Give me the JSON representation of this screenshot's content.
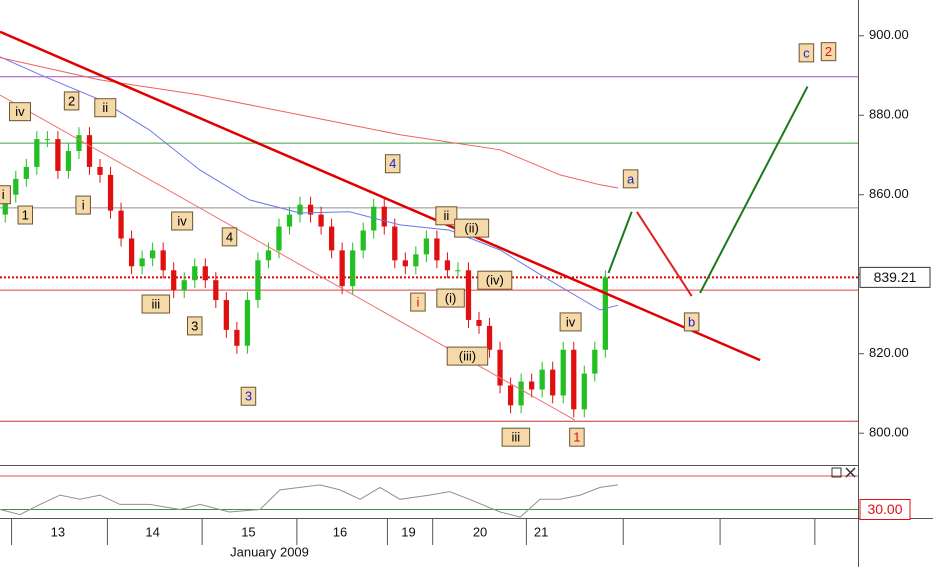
{
  "chart_data": {
    "type": "candlestick",
    "xlim": [
      -0.5,
      81
    ],
    "ylim": [
      792,
      909
    ],
    "yticks": [
      {
        "value": 800,
        "label": "800.00"
      },
      {
        "value": 820,
        "label": "820.00"
      },
      {
        "value": 840,
        "label": "840.00"
      },
      {
        "value": 860,
        "label": "860.00"
      },
      {
        "value": 880,
        "label": "880.00"
      },
      {
        "value": 900,
        "label": "900.00"
      }
    ],
    "xticks": [
      0.6,
      9.7,
      18.7,
      27.7,
      36.3,
      40.6,
      49.5,
      58.7,
      67.9,
      76.9
    ],
    "day_labels": [
      {
        "value": 5,
        "label": "13"
      },
      {
        "value": 14,
        "label": "14"
      },
      {
        "value": 23.1,
        "label": "15"
      },
      {
        "value": 31.8,
        "label": "16"
      },
      {
        "value": 38.3,
        "label": "19"
      },
      {
        "value": 45.1,
        "label": "20"
      },
      {
        "value": 50.9,
        "label": "21"
      }
    ],
    "month_label": {
      "value": 25.1,
      "label": "January 2009"
    },
    "candles": {
      "up_color": "#22c022",
      "down_color": "#e01010",
      "open": [
        855,
        860,
        864,
        867,
        874,
        874,
        866,
        871,
        875,
        867,
        865,
        856,
        849,
        842,
        844,
        846,
        841,
        836,
        838.5,
        842,
        838.5,
        833.5,
        826,
        822,
        833.5,
        843.5,
        846,
        852,
        855,
        857.5,
        855,
        852,
        846,
        837,
        846,
        851,
        857,
        852,
        843.5,
        842,
        845,
        849,
        843.5,
        841,
        841,
        828.5,
        827,
        821,
        812,
        807,
        813,
        811,
        816,
        809.5,
        821,
        806,
        815,
        821
      ],
      "high": [
        862,
        866,
        869,
        876,
        876,
        876,
        873,
        877,
        877,
        869,
        867,
        858,
        851,
        846,
        848,
        848,
        843,
        840.5,
        844,
        844,
        840.5,
        835.5,
        828,
        835.5,
        845.5,
        848,
        854,
        857,
        859.5,
        859.5,
        857,
        854,
        848,
        848,
        853,
        859,
        859,
        854,
        845.5,
        847,
        851,
        851,
        845.5,
        843,
        843,
        830.5,
        829,
        823,
        814,
        815,
        815,
        818,
        818,
        823,
        823,
        817,
        823,
        841
      ],
      "low": [
        853,
        858,
        862,
        865,
        872,
        864,
        864,
        869,
        865,
        863,
        854,
        847,
        840,
        840,
        842,
        839,
        834,
        834,
        836.5,
        836.5,
        831.5,
        824,
        820,
        820,
        831.5,
        841.5,
        844,
        850,
        853,
        853,
        850,
        844,
        835,
        835,
        844,
        849,
        850,
        841.5,
        840,
        840,
        843,
        841.5,
        839,
        839,
        826.5,
        825,
        819,
        810,
        805,
        805,
        809,
        809,
        807.5,
        807.5,
        804,
        804,
        813,
        819
      ],
      "close": [
        860,
        864,
        867,
        874,
        874,
        866,
        871,
        875,
        867,
        865,
        856,
        849,
        842,
        844,
        846,
        841,
        836,
        838.5,
        842,
        838.5,
        833.5,
        826,
        822,
        833.5,
        843.5,
        846,
        852,
        855,
        857.5,
        855,
        852,
        846,
        837,
        846,
        851,
        857,
        852,
        843.5,
        842,
        845,
        849,
        843.5,
        841,
        841,
        828.5,
        827,
        821,
        812,
        807,
        813,
        811,
        816,
        809.5,
        821,
        806,
        815,
        821,
        839.2
      ]
    },
    "last_price": 839.21,
    "levels": [
      {
        "value": 889.7,
        "color": "#a050c0"
      },
      {
        "value": 873,
        "color": "#40a040"
      },
      {
        "value": 856.7,
        "color": "#909090"
      },
      {
        "value": 839.21,
        "color": "#e00000",
        "dotted": true
      },
      {
        "value": 836,
        "color": "#e04040"
      },
      {
        "value": 803,
        "color": "#c03030"
      }
    ],
    "series": [
      {
        "x": [
          -0.5,
          3.3,
          9,
          13.7,
          18.5,
          23.2,
          28,
          32.7,
          37.5,
          42.2,
          47,
          51.7,
          56.5,
          58.2
        ],
        "values": [
          894.7,
          890.2,
          883.9,
          876.3,
          866.2,
          858.7,
          855.4,
          855.7,
          852.4,
          851.1,
          846.1,
          838.5,
          831,
          832.2
        ],
        "color": "#6a78e8",
        "width": 1
      },
      {
        "x": [
          -0.5,
          9,
          18.5,
          28,
          37.5,
          47,
          52.7,
          56.5,
          58.2
        ],
        "values": [
          894.5,
          888.9,
          885.1,
          880.1,
          875.1,
          871.3,
          865,
          862.5,
          861.7
        ],
        "color": "#f06060",
        "width": 1
      },
      {
        "x": [
          -0.5,
          71.7
        ],
        "values": [
          901,
          818.4
        ],
        "color": "#e00000",
        "width": 2.5
      },
      {
        "x": [
          -0.5,
          54.1
        ],
        "values": [
          885.1,
          803.3
        ],
        "color": "#f07070",
        "width": 1
      },
      {
        "x": [
          57.3,
          59.5
        ],
        "values": [
          840.3,
          855.7
        ],
        "color": "#1a7a1a",
        "width": 2
      },
      {
        "x": [
          60,
          65.2
        ],
        "values": [
          855.7,
          834.5
        ],
        "color": "#e02020",
        "width": 2
      },
      {
        "x": [
          66,
          76.2
        ],
        "values": [
          835.3,
          887.2
        ],
        "color": "#1a7a1a",
        "width": 2
      }
    ],
    "annotations": [
      {
        "text": "2",
        "x": 6.3,
        "y": 883.6,
        "color": "#000000"
      },
      {
        "text": "ii",
        "x": 9.5,
        "y": 881.9,
        "color": "#000000"
      },
      {
        "text": "iv",
        "x": 1.4,
        "y": 880.9,
        "color": "#000000"
      },
      {
        "text": "i",
        "x": -0.2,
        "y": 860,
        "color": "#000000"
      },
      {
        "text": "1",
        "x": 1.9,
        "y": 854.9,
        "color": "#000000"
      },
      {
        "text": "i",
        "x": 7.4,
        "y": 857.4,
        "color": "#000000"
      },
      {
        "text": "iv",
        "x": 16.8,
        "y": 853.4,
        "color": "#000000"
      },
      {
        "text": "4",
        "x": 21.3,
        "y": 849.4,
        "color": "#000000"
      },
      {
        "text": "iii",
        "x": 14.3,
        "y": 832.5,
        "color": "#000000"
      },
      {
        "text": "3",
        "x": 18,
        "y": 827,
        "color": "#000000"
      },
      {
        "text": "3",
        "x": 23.1,
        "y": 809.3,
        "color": "#2020d0"
      },
      {
        "text": "4",
        "x": 36.8,
        "y": 867.8,
        "color": "#2020d0"
      },
      {
        "text": "ii",
        "x": 41.9,
        "y": 854.7,
        "color": "#000000"
      },
      {
        "text": "(ii)",
        "x": 44.3,
        "y": 851.6,
        "color": "#000000"
      },
      {
        "text": "i",
        "x": 39.2,
        "y": 833,
        "color": "#e01010"
      },
      {
        "text": "(i)",
        "x": 42.3,
        "y": 834,
        "color": "#000000"
      },
      {
        "text": "(iv)",
        "x": 46.5,
        "y": 838.5,
        "color": "#000000"
      },
      {
        "text": "(iii)",
        "x": 43.9,
        "y": 819.4,
        "color": "#000000"
      },
      {
        "text": "iv",
        "x": 53.7,
        "y": 828,
        "color": "#000000"
      },
      {
        "text": "iii",
        "x": 48.5,
        "y": 799,
        "color": "#000000"
      },
      {
        "text": "1",
        "x": 54.3,
        "y": 799,
        "color": "#e01010"
      },
      {
        "text": "a",
        "x": 59.4,
        "y": 864,
        "color": "#2020d0"
      },
      {
        "text": "b",
        "x": 65.2,
        "y": 828,
        "color": "#2020d0"
      },
      {
        "text": "c",
        "x": 76.1,
        "y": 895.7,
        "color": "#2020d0"
      },
      {
        "text": "2",
        "x": 78.2,
        "y": 896,
        "color": "#e01010"
      }
    ],
    "oscillator": {
      "ylim": [
        20,
        80
      ],
      "color": "#909090",
      "level": {
        "value": 30,
        "label": "30.00"
      },
      "x": [
        -0.5,
        1.4,
        3.3,
        5.2,
        7.1,
        9,
        10.9,
        13.7,
        16.6,
        18.5,
        21.3,
        24.2,
        26.1,
        28,
        29.9,
        31.8,
        33.7,
        35.6,
        37.5,
        40.3,
        42.2,
        44.1,
        47,
        48.9,
        50.8,
        52.7,
        54.6,
        56.5,
        58.2
      ],
      "values": [
        30,
        24,
        36,
        47,
        42,
        47,
        36,
        36,
        30,
        36,
        27,
        30,
        53,
        56,
        59,
        53,
        42,
        56,
        42,
        47,
        51,
        42,
        27,
        21,
        42,
        42,
        47,
        56,
        59
      ]
    }
  }
}
